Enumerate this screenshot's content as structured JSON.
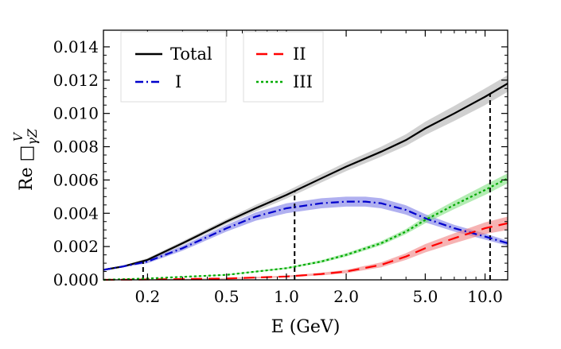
{
  "chart_data": {
    "type": "line",
    "xscale": "log",
    "xlim": [
      0.12,
      13.0
    ],
    "ylim": [
      0,
      0.015
    ],
    "xlabel": "E (GeV)",
    "ylabel": {
      "prefix": "Re ",
      "symbol": "□",
      "sub": "γZ",
      "sup": "V"
    },
    "x_ticks": [
      {
        "value": 0.2,
        "label": "0.2"
      },
      {
        "value": 0.5,
        "label": "0.5"
      },
      {
        "value": 1.0,
        "label": "1.0"
      },
      {
        "value": 2.0,
        "label": "2.0"
      },
      {
        "value": 5.0,
        "label": "5.0"
      },
      {
        "value": 10.0,
        "label": "10.0"
      }
    ],
    "y_ticks": [
      {
        "value": 0.0,
        "label": "0.000"
      },
      {
        "value": 0.002,
        "label": "0.002"
      },
      {
        "value": 0.004,
        "label": "0.004"
      },
      {
        "value": 0.006,
        "label": "0.006"
      },
      {
        "value": 0.008,
        "label": "0.008"
      },
      {
        "value": 0.01,
        "label": "0.010"
      },
      {
        "value": 0.012,
        "label": "0.012"
      },
      {
        "value": 0.014,
        "label": "0.014"
      }
    ],
    "vlines": [
      0.19,
      1.1,
      10.6
    ],
    "legend_position": "top-left",
    "series": [
      {
        "name": "Total",
        "color": "#000000",
        "dash": "solid",
        "band_color": "#b0b0b0",
        "x": [
          0.12,
          0.15,
          0.2,
          0.3,
          0.5,
          0.7,
          1.0,
          1.5,
          2.0,
          3.0,
          4.0,
          5.0,
          7.0,
          10.0,
          13.0
        ],
        "y": [
          0.0006,
          0.0008,
          0.0012,
          0.0022,
          0.0035,
          0.0043,
          0.0051,
          0.0061,
          0.0068,
          0.0077,
          0.0084,
          0.0091,
          0.01,
          0.011,
          0.0118
        ],
        "err": [
          5e-05,
          5e-05,
          0.0001,
          0.00012,
          0.00015,
          0.0002,
          0.00022,
          0.00025,
          0.00027,
          0.0003,
          0.00035,
          0.0004,
          0.00045,
          0.0005,
          0.0005
        ]
      },
      {
        "name": "I",
        "color": "#0000cc",
        "dash": "dashdot",
        "band_color": "#7b7be6",
        "x": [
          0.12,
          0.15,
          0.2,
          0.3,
          0.5,
          0.7,
          1.0,
          1.5,
          2.0,
          2.5,
          3.0,
          4.0,
          5.0,
          7.0,
          10.0,
          13.0
        ],
        "y": [
          0.0006,
          0.0008,
          0.0011,
          0.0019,
          0.0031,
          0.0038,
          0.0043,
          0.0046,
          0.0047,
          0.0047,
          0.0046,
          0.0042,
          0.0037,
          0.0031,
          0.0026,
          0.0022
        ],
        "err": [
          5e-05,
          5e-05,
          0.0001,
          0.00015,
          0.0002,
          0.00025,
          0.0003,
          0.0003,
          0.0003,
          0.0003,
          0.0003,
          0.00028,
          0.00025,
          0.0002,
          0.00018,
          0.00015
        ]
      },
      {
        "name": "II",
        "color": "#ff0000",
        "dash": "dashed",
        "band_color": "#f08080",
        "x": [
          0.12,
          0.2,
          0.5,
          1.0,
          1.5,
          2.0,
          3.0,
          4.0,
          5.0,
          7.0,
          10.0,
          13.0
        ],
        "y": [
          0.0,
          2e-05,
          8e-05,
          0.0002,
          0.00035,
          0.0005,
          0.0009,
          0.0014,
          0.0019,
          0.0025,
          0.0031,
          0.0034
        ],
        "err": [
          0.0,
          1e-05,
          3e-05,
          5e-05,
          8e-05,
          0.0001,
          0.00015,
          0.0002,
          0.00025,
          0.0003,
          0.00035,
          0.0004
        ]
      },
      {
        "name": "III",
        "color": "#00aa00",
        "dash": "dotted",
        "band_color": "#80e080",
        "x": [
          0.12,
          0.2,
          0.5,
          1.0,
          1.5,
          2.0,
          3.0,
          4.0,
          5.0,
          7.0,
          10.0,
          13.0
        ],
        "y": [
          0.0,
          8e-05,
          0.0003,
          0.0007,
          0.0011,
          0.0015,
          0.0022,
          0.0029,
          0.0036,
          0.0045,
          0.0054,
          0.0061
        ],
        "err": [
          0.0,
          1e-05,
          3e-05,
          5e-05,
          8e-05,
          0.0001,
          0.00012,
          0.00015,
          0.0002,
          0.00025,
          0.0003,
          0.0003
        ]
      }
    ]
  }
}
